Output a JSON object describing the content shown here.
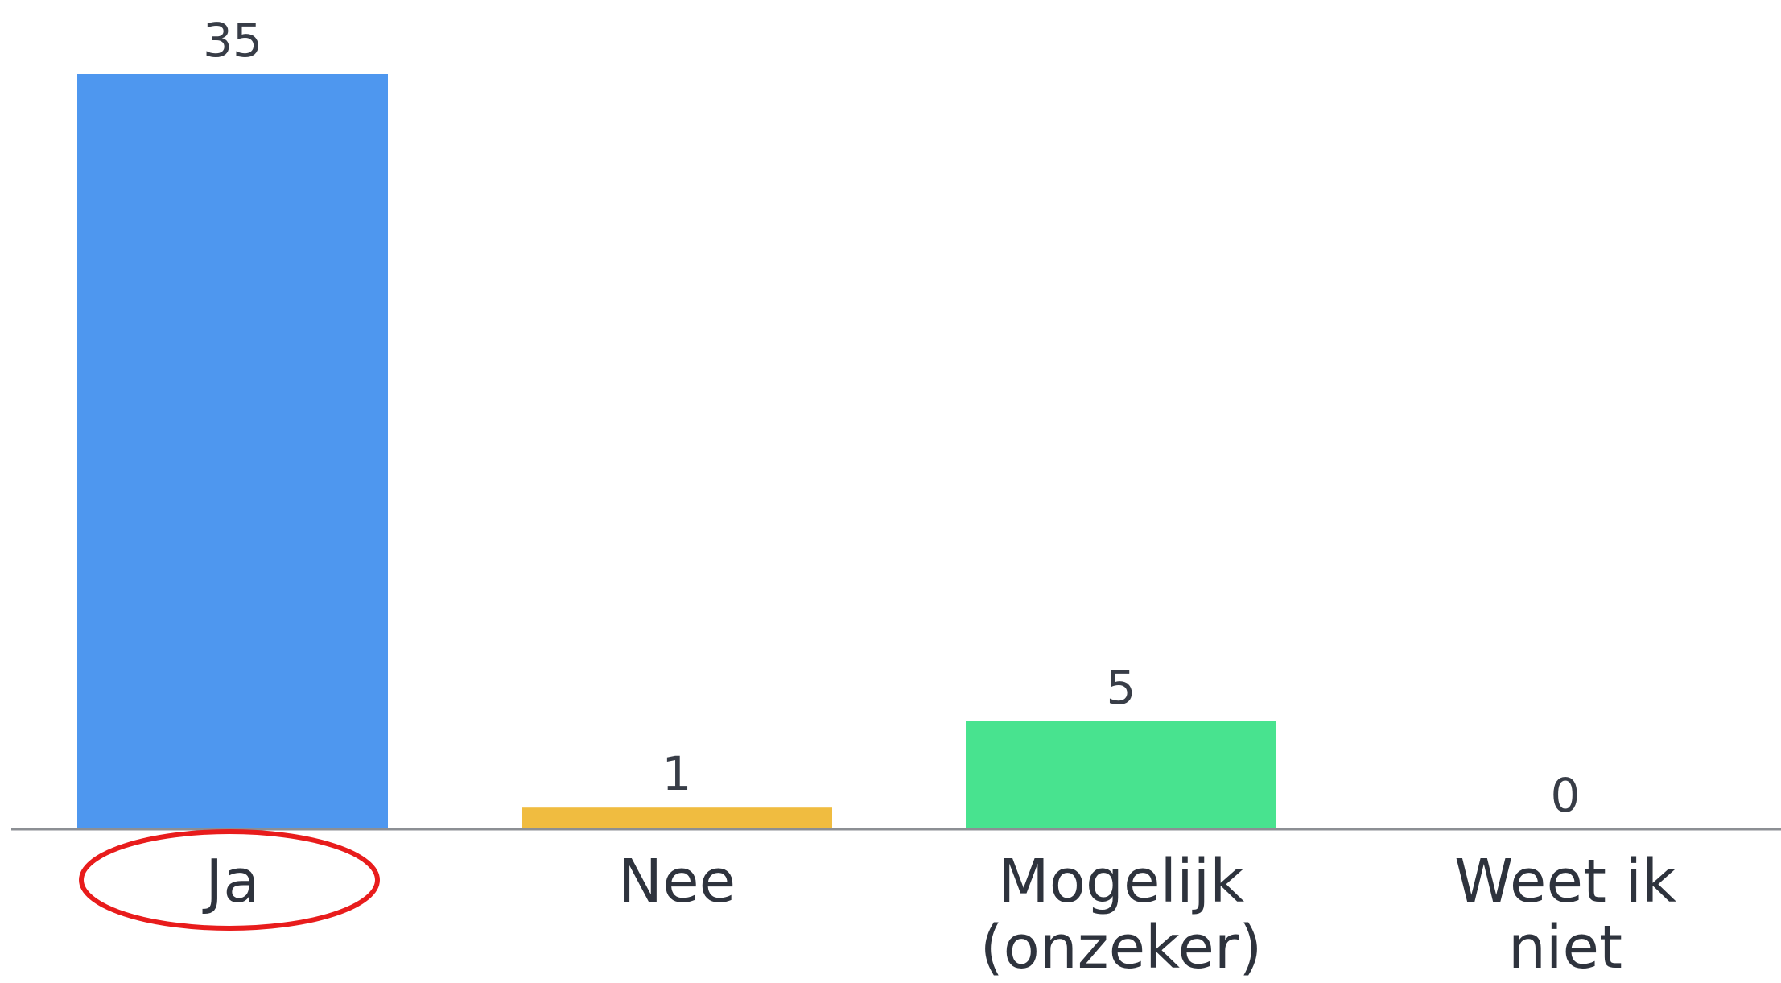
{
  "chart_data": {
    "type": "bar",
    "categories": [
      "Ja",
      "Nee",
      "Mogelijk (onzeker)",
      "Weet ik niet"
    ],
    "category_lines": [
      [
        "Ja"
      ],
      [
        "Nee"
      ],
      [
        "Mogelijk",
        "(onzeker)"
      ],
      [
        "Weet ik",
        "niet"
      ]
    ],
    "values": [
      35,
      1,
      5,
      0
    ],
    "data_labels": [
      "35",
      "1",
      "5",
      "0"
    ],
    "colors": [
      "#4e97ef",
      "#f0bc40",
      "#48e38f",
      "#9aa0a8"
    ],
    "ylim": [
      0,
      35
    ],
    "title": "",
    "xlabel": "",
    "ylabel": "",
    "grid": false,
    "legend": "none",
    "axis_color": "#8c8f94",
    "annotation": {
      "shape": "ellipse",
      "color": "#e81c1c",
      "target_category": "Ja"
    }
  }
}
